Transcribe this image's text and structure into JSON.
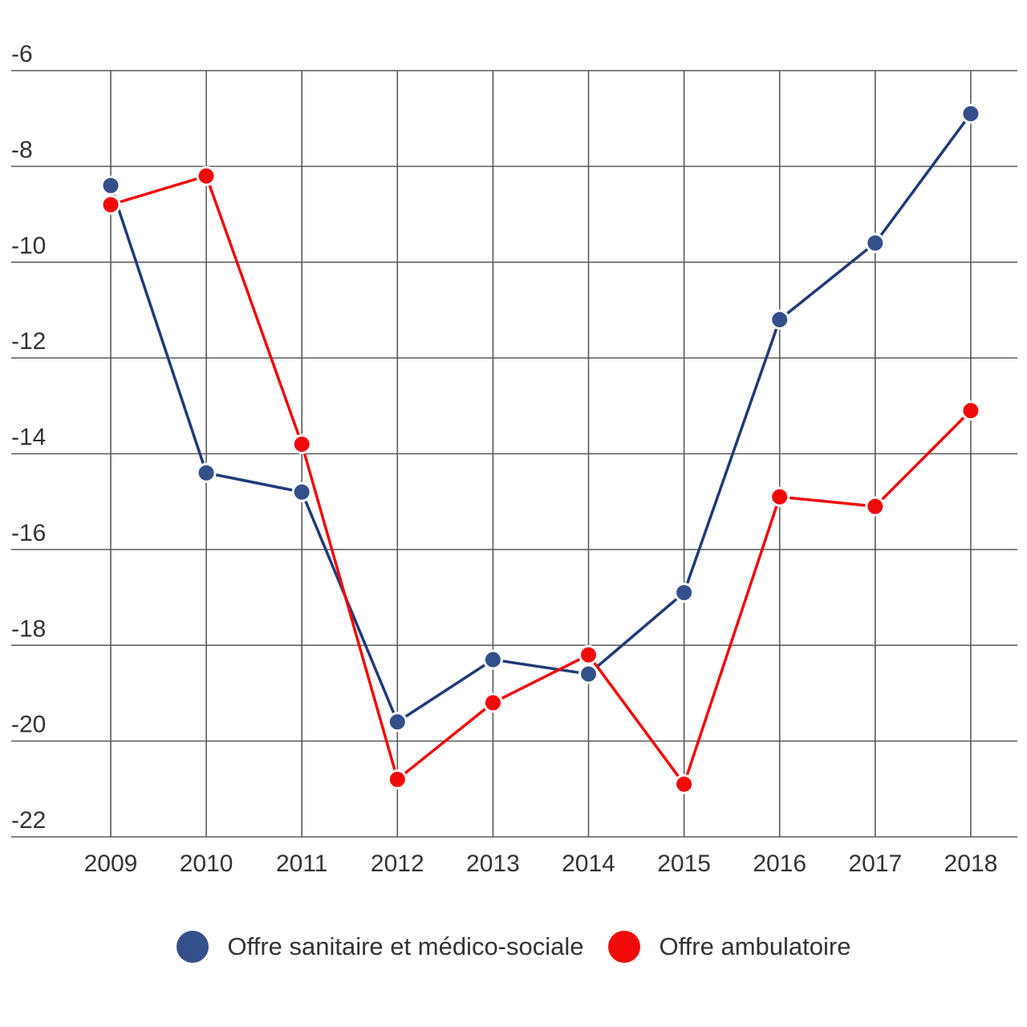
{
  "chart_data": {
    "type": "line",
    "title": "",
    "xlabel": "",
    "ylabel": "",
    "categories": [
      "2009",
      "2010",
      "2011",
      "2012",
      "2013",
      "2014",
      "2015",
      "2016",
      "2017",
      "2018"
    ],
    "ylim": [
      -22,
      -6
    ],
    "yticks": [
      -6,
      -8,
      -10,
      -12,
      -14,
      -16,
      -18,
      -20,
      -22
    ],
    "ytick_labels": [
      "-6",
      "-8",
      "-10",
      "-12",
      "-14",
      "-16",
      "-18",
      "-20",
      "-22"
    ],
    "grid": true,
    "legend_position": "bottom",
    "series": [
      {
        "name": "Offre sanitaire et médico-sociale",
        "color": "#1f3a78",
        "marker_color": "#34508a",
        "values": [
          -8.4,
          -14.4,
          -14.8,
          -19.6,
          -18.3,
          -18.6,
          -16.9,
          -11.2,
          -9.6,
          -6.9
        ]
      },
      {
        "name": "Offre ambulatoire",
        "color": "#f00a0a",
        "marker_color": "#f00a0a",
        "values": [
          -8.8,
          -8.2,
          -13.8,
          -20.8,
          -19.2,
          -18.2,
          -20.9,
          -14.9,
          -15.1,
          -13.1
        ]
      }
    ]
  }
}
